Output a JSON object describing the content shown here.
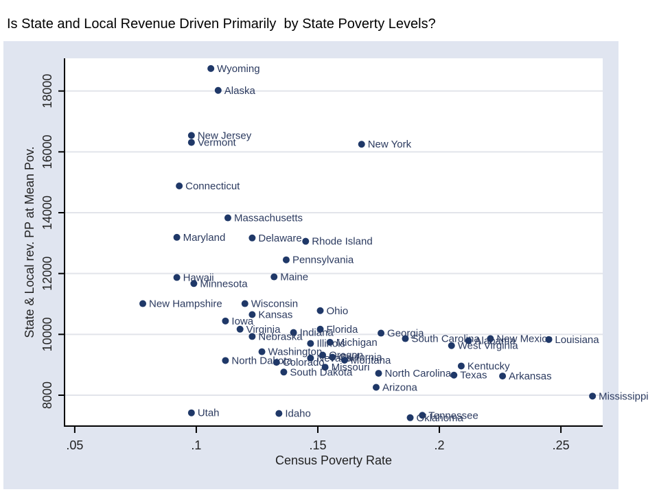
{
  "chart_data": {
    "type": "scatter",
    "title": "Is State and Local Revenue Driven Primarily  by State Poverty Levels?",
    "xlabel": "Census Poverty Rate",
    "ylabel": "State & Local rev. PP at Mean Pov.",
    "xlim": [
      0.0458,
      0.2672
    ],
    "ylim": [
      6985,
      19075
    ],
    "xticks": [
      0.05,
      0.1,
      0.15,
      0.2,
      0.25
    ],
    "xtick_labels": [
      ".05",
      ".1",
      ".15",
      ".2",
      ".25"
    ],
    "yticks": [
      8000,
      10000,
      12000,
      14000,
      16000,
      18000
    ],
    "ytick_labels": [
      "8000",
      "10000",
      "12000",
      "14000",
      "16000",
      "18000"
    ],
    "grid": "horizontal",
    "legend": "none",
    "marker_color": "#1f3868",
    "points": [
      {
        "label": "Wyoming",
        "x": 0.106,
        "y": 18740
      },
      {
        "label": "Alaska",
        "x": 0.109,
        "y": 18020
      },
      {
        "label": "New Jersey",
        "x": 0.098,
        "y": 16540
      },
      {
        "label": "Vermont",
        "x": 0.098,
        "y": 16310
      },
      {
        "label": "New York",
        "x": 0.168,
        "y": 16250
      },
      {
        "label": "Connecticut",
        "x": 0.093,
        "y": 14880
      },
      {
        "label": "Massachusetts",
        "x": 0.113,
        "y": 13830
      },
      {
        "label": "Maryland",
        "x": 0.092,
        "y": 13190
      },
      {
        "label": "Delaware",
        "x": 0.123,
        "y": 13170
      },
      {
        "label": "Rhode Island",
        "x": 0.145,
        "y": 13060
      },
      {
        "label": "Pennsylvania",
        "x": 0.137,
        "y": 12450
      },
      {
        "label": "Hawaii",
        "x": 0.092,
        "y": 11870
      },
      {
        "label": "Maine",
        "x": 0.132,
        "y": 11890
      },
      {
        "label": "Minnesota",
        "x": 0.099,
        "y": 11670
      },
      {
        "label": "New Hampshire",
        "x": 0.078,
        "y": 11010
      },
      {
        "label": "Wisconsin",
        "x": 0.12,
        "y": 11010
      },
      {
        "label": "Ohio",
        "x": 0.151,
        "y": 10780
      },
      {
        "label": "Kansas",
        "x": 0.123,
        "y": 10650
      },
      {
        "label": "Iowa",
        "x": 0.112,
        "y": 10440
      },
      {
        "label": "Virginia",
        "x": 0.118,
        "y": 10170
      },
      {
        "label": "Florida",
        "x": 0.151,
        "y": 10170
      },
      {
        "label": "Indiana",
        "x": 0.14,
        "y": 10060
      },
      {
        "label": "Georgia",
        "x": 0.176,
        "y": 10040
      },
      {
        "label": "Nebraska",
        "x": 0.123,
        "y": 9930
      },
      {
        "label": "South Carolina",
        "x": 0.186,
        "y": 9860
      },
      {
        "label": "New Mexico",
        "x": 0.221,
        "y": 9860
      },
      {
        "label": "Louisiana",
        "x": 0.245,
        "y": 9830
      },
      {
        "label": "Alabama",
        "x": 0.212,
        "y": 9790
      },
      {
        "label": "Michigan",
        "x": 0.155,
        "y": 9740
      },
      {
        "label": "Illinois",
        "x": 0.147,
        "y": 9700
      },
      {
        "label": "West Virginia",
        "x": 0.205,
        "y": 9630
      },
      {
        "label": "Washington",
        "x": 0.127,
        "y": 9430
      },
      {
        "label": "Oregon",
        "x": 0.152,
        "y": 9320
      },
      {
        "label": "California",
        "x": 0.156,
        "y": 9250
      },
      {
        "label": "Nevada",
        "x": 0.147,
        "y": 9220
      },
      {
        "label": "Montana",
        "x": 0.161,
        "y": 9150
      },
      {
        "label": "North Dakota",
        "x": 0.112,
        "y": 9140
      },
      {
        "label": "Colorado",
        "x": 0.133,
        "y": 9080
      },
      {
        "label": "Kentucky",
        "x": 0.209,
        "y": 8960
      },
      {
        "label": "Missouri",
        "x": 0.153,
        "y": 8920
      },
      {
        "label": "South Dakota",
        "x": 0.136,
        "y": 8760
      },
      {
        "label": "North Carolina",
        "x": 0.175,
        "y": 8720
      },
      {
        "label": "Texas",
        "x": 0.206,
        "y": 8660
      },
      {
        "label": "Arkansas",
        "x": 0.226,
        "y": 8630
      },
      {
        "label": "Arizona",
        "x": 0.174,
        "y": 8260
      },
      {
        "label": "Mississippi",
        "x": 0.263,
        "y": 7970
      },
      {
        "label": "Utah",
        "x": 0.098,
        "y": 7420
      },
      {
        "label": "Idaho",
        "x": 0.134,
        "y": 7400
      },
      {
        "label": "Tennessee",
        "x": 0.193,
        "y": 7340
      },
      {
        "label": "Oklahoma",
        "x": 0.188,
        "y": 7260
      }
    ]
  }
}
